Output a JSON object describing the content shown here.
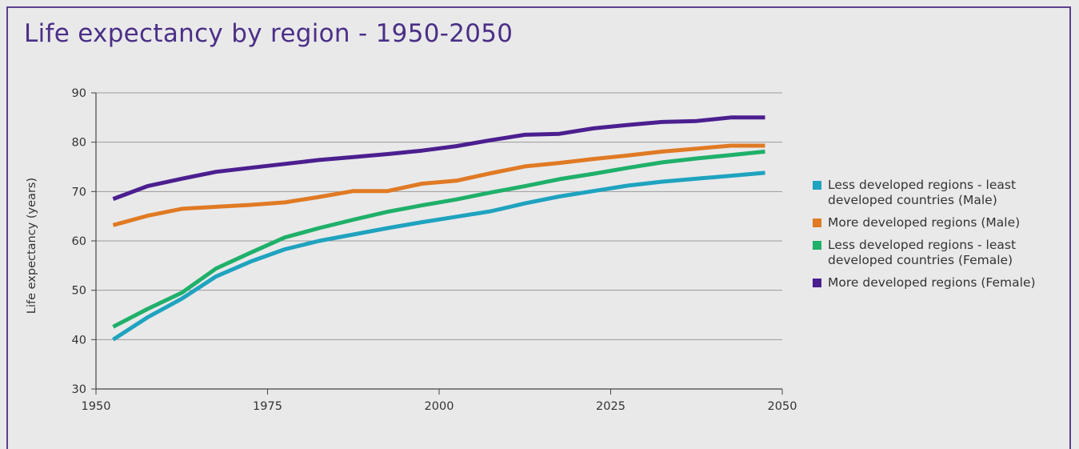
{
  "title": "Life expectancy by region - 1950-2050",
  "chart_data": {
    "type": "line",
    "title": "Life expectancy by region - 1950-2050",
    "xlabel": "",
    "ylabel": "Life expectancy (years)",
    "xlim": [
      1950,
      2050
    ],
    "ylim": [
      30,
      90
    ],
    "xticks": [
      1950,
      1975,
      2000,
      2025,
      2050
    ],
    "yticks": [
      30,
      40,
      50,
      60,
      70,
      80,
      90
    ],
    "grid": "horizontal",
    "legend": "right",
    "x": [
      1952.5,
      1957.5,
      1962.5,
      1967.5,
      1972.5,
      1977.5,
      1982.5,
      1987.5,
      1992.5,
      1997.5,
      2002.5,
      2007.5,
      2012.5,
      2017.5,
      2022.5,
      2027.5,
      2032.5,
      2037.5,
      2042.5,
      2047.5
    ],
    "series": [
      {
        "name": "Less developed regions - least developed countries (Male)",
        "color": "#1fa3bf",
        "values": [
          40.0,
          44.5,
          48.3,
          52.8,
          55.8,
          58.3,
          60.0,
          61.3,
          62.6,
          63.8,
          64.9,
          66.0,
          67.6,
          69.0,
          70.1,
          71.2,
          72.0,
          72.6,
          73.2,
          73.8
        ]
      },
      {
        "name": "More developed regions (Male)",
        "color": "#e07a24",
        "values": [
          63.2,
          65.1,
          66.5,
          66.9,
          67.3,
          67.8,
          68.9,
          70.1,
          70.1,
          71.6,
          72.2,
          73.7,
          75.1,
          75.8,
          76.6,
          77.3,
          78.1,
          78.7,
          79.3,
          79.3
        ]
      },
      {
        "name": "Less developed regions - least developed countries (Female)",
        "color": "#1fb06a",
        "values": [
          42.6,
          46.2,
          49.5,
          54.4,
          57.6,
          60.7,
          62.6,
          64.3,
          65.9,
          67.2,
          68.4,
          69.8,
          71.1,
          72.5,
          73.6,
          74.8,
          75.9,
          76.7,
          77.4,
          78.1
        ]
      },
      {
        "name": "More developed regions (Female)",
        "color": "#4b1f8f",
        "values": [
          68.5,
          71.1,
          72.6,
          74.0,
          74.8,
          75.6,
          76.4,
          77.0,
          77.6,
          78.3,
          79.2,
          80.4,
          81.5,
          81.7,
          82.8,
          83.5,
          84.1,
          84.3,
          85.0,
          85.0
        ]
      }
    ]
  }
}
